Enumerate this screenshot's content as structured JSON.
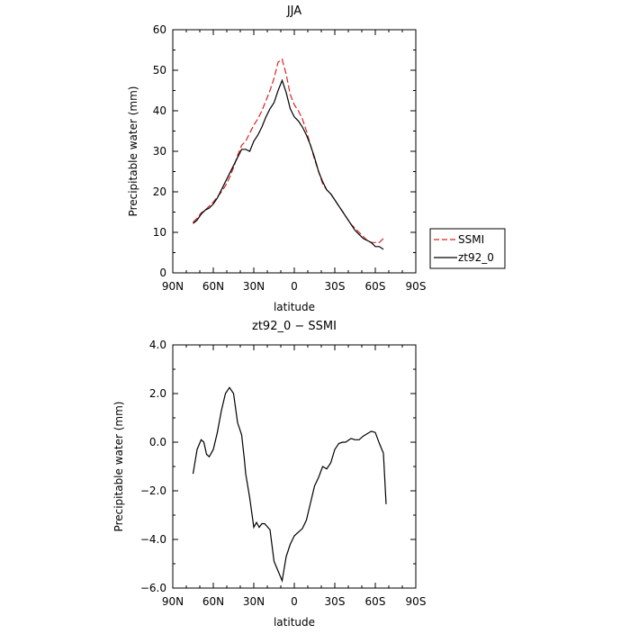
{
  "chart_data": [
    {
      "type": "line",
      "title": "JJA",
      "xlabel": "latitude",
      "ylabel": "Precipitable water (mm)",
      "xlim": [
        90,
        -90
      ],
      "ylim": [
        0,
        60
      ],
      "x_ticks": [
        90,
        60,
        30,
        0,
        -30,
        -60,
        -90
      ],
      "x_tick_labels": [
        "90N",
        "60N",
        "30N",
        "0",
        "30S",
        "60S",
        "90S"
      ],
      "y_ticks": [
        0,
        10,
        20,
        30,
        40,
        50,
        60
      ],
      "y_tick_labels": [
        "0",
        "10",
        "20",
        "30",
        "40",
        "50",
        "60"
      ],
      "legend_position": "right",
      "series": [
        {
          "name": "SSMI",
          "color": "#dd2222",
          "dash": "dashed",
          "x": [
            75,
            72,
            69,
            66,
            63,
            60,
            57,
            54,
            51,
            48,
            45,
            42,
            39,
            36,
            33,
            30,
            27,
            24,
            21,
            18,
            15,
            12,
            9,
            6,
            3,
            0,
            -3,
            -6,
            -9,
            -12,
            -15,
            -18,
            -21,
            -24,
            -27,
            -30,
            -33,
            -36,
            -39,
            -42,
            -45,
            -48,
            -51,
            -54,
            -57,
            -60,
            -63,
            -66
          ],
          "values": [
            12.5,
            13.5,
            14.8,
            15.5,
            16.5,
            17.5,
            18.7,
            20,
            21.5,
            23.5,
            26,
            29,
            31.5,
            32.5,
            34.5,
            36.5,
            38,
            40,
            42.5,
            45,
            48,
            52,
            52.7,
            49,
            44,
            41.5,
            40,
            38,
            35,
            31.5,
            28,
            25,
            22,
            20.5,
            19.5,
            18,
            16.5,
            15,
            13.5,
            12,
            11,
            10,
            9,
            8,
            7.5,
            7.5,
            7.5,
            8.5
          ]
        },
        {
          "name": "zt92_0",
          "color": "#000000",
          "dash": "solid",
          "x": [
            75,
            72,
            69,
            66,
            63,
            60,
            57,
            54,
            51,
            48,
            45,
            42,
            39,
            36,
            33,
            30,
            27,
            24,
            21,
            18,
            15,
            12,
            9,
            6,
            3,
            0,
            -3,
            -6,
            -9,
            -12,
            -15,
            -18,
            -21,
            -24,
            -27,
            -30,
            -33,
            -36,
            -39,
            -42,
            -45,
            -48,
            -51,
            -54,
            -57,
            -60,
            -63,
            -66
          ],
          "values": [
            12.2,
            13,
            14.5,
            15.5,
            16,
            17,
            18.5,
            20.5,
            22.5,
            24.5,
            26.5,
            28.5,
            30.5,
            30.5,
            30,
            32.5,
            34,
            36,
            38.5,
            40.5,
            42,
            45,
            47.5,
            44.5,
            40.5,
            38.5,
            37.5,
            36,
            34,
            31.5,
            28.5,
            25,
            22.5,
            20.5,
            19.5,
            18,
            16.5,
            15,
            13.5,
            12,
            10.5,
            9.5,
            8.5,
            8,
            7.5,
            6.5,
            6.5,
            5.8
          ]
        }
      ]
    },
    {
      "type": "line",
      "title": "zt92_0 − SSMI",
      "xlabel": "latitude",
      "ylabel": "Precipitable water (mm)",
      "xlim": [
        90,
        -90
      ],
      "ylim": [
        -6,
        4
      ],
      "x_ticks": [
        90,
        60,
        30,
        0,
        -30,
        -60,
        -90
      ],
      "x_tick_labels": [
        "90N",
        "60N",
        "30N",
        "0",
        "30S",
        "60S",
        "90S"
      ],
      "y_ticks": [
        4,
        2,
        0,
        -2,
        -4,
        -6
      ],
      "y_tick_labels": [
        "4.0",
        "2.0",
        "0.0",
        "−2.0",
        "−4.0",
        "−6.0"
      ],
      "series": [
        {
          "color": "#000000",
          "dash": "solid",
          "x": [
            75,
            72,
            69,
            67,
            65,
            63,
            60,
            57,
            54,
            51,
            48,
            45,
            42,
            39,
            37,
            36,
            33,
            30,
            28,
            26,
            24,
            22,
            18,
            15,
            12,
            9,
            6,
            3,
            0,
            -3,
            -6,
            -9,
            -12,
            -15,
            -18,
            -21,
            -24,
            -27,
            -30,
            -33,
            -36,
            -38,
            -42,
            -45,
            -48,
            -51,
            -54,
            -57,
            -60,
            -63,
            -66
          ],
          "values": [
            -1.3,
            -0.3,
            0.1,
            0,
            -0.5,
            -0.6,
            -0.3,
            0.4,
            1.3,
            2,
            2.25,
            2,
            0.8,
            0.3,
            -0.7,
            -1.3,
            -2.3,
            -3.5,
            -3.3,
            -3.5,
            -3.35,
            -3.35,
            -3.6,
            -4.9,
            -5.3,
            -5.7,
            -4.7,
            -4.2,
            -3.85,
            -3.7,
            -3.55,
            -3.2,
            -2.5,
            -1.8,
            -1.45,
            -1,
            -1.1,
            -0.85,
            -0.3,
            -0.05,
            0,
            0,
            0.15,
            0.1,
            0.1,
            0.25,
            0.35,
            0.45,
            0.4,
            -0.05,
            -0.45
          ]
        },
        {
          "color": "#000000",
          "dash": "solid",
          "x": [
            -66,
            -68
          ],
          "values": [
            -0.45,
            -2.55
          ]
        }
      ]
    }
  ]
}
